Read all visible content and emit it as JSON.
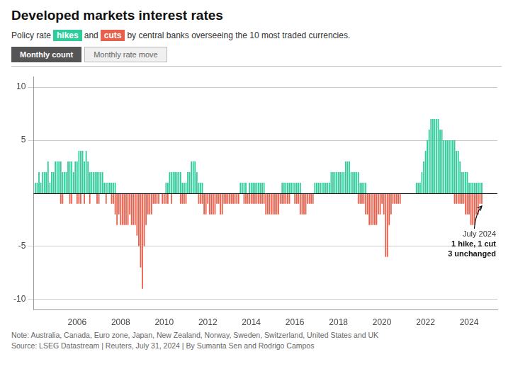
{
  "chart_data": {
    "type": "bar",
    "title": "Developed markets interest rates",
    "subtitle": [
      "Policy rate",
      "and",
      "by central banks overseeing the 10 most traded currencies."
    ],
    "buttons": [
      "Monthly count",
      "Monthly rate move"
    ],
    "x": [
      2004.0833,
      2004.1667,
      2004.25,
      2004.3333,
      2004.4167,
      2004.5,
      2004.5833,
      2004.6667,
      2004.75,
      2004.8333,
      2004.9167,
      2005.0,
      2005.0833,
      2005.1667,
      2005.25,
      2005.3333,
      2005.4167,
      2005.5,
      2005.5833,
      2005.6667,
      2005.75,
      2005.8333,
      2005.9167,
      2006.0,
      2006.0833,
      2006.1667,
      2006.25,
      2006.3333,
      2006.4167,
      2006.5,
      2006.5833,
      2006.6667,
      2006.75,
      2006.8333,
      2006.9167,
      2007.0,
      2007.0833,
      2007.1667,
      2007.25,
      2007.3333,
      2007.4167,
      2007.5,
      2007.5833,
      2007.6667,
      2007.75,
      2007.8333,
      2007.9167,
      2008.0,
      2008.0833,
      2008.1667,
      2008.25,
      2008.3333,
      2008.4167,
      2008.5,
      2008.5833,
      2008.6667,
      2008.75,
      2008.8333,
      2008.9167,
      2009.0,
      2009.0833,
      2009.1667,
      2009.25,
      2009.3333,
      2009.4167,
      2009.5,
      2009.5833,
      2009.6667,
      2009.75,
      2009.8333,
      2009.9167,
      2010.0,
      2010.0833,
      2010.1667,
      2010.25,
      2010.3333,
      2010.4167,
      2010.5,
      2010.5833,
      2010.6667,
      2010.75,
      2010.8333,
      2010.9167,
      2011.0,
      2011.0833,
      2011.1667,
      2011.25,
      2011.3333,
      2011.4167,
      2011.5,
      2011.5833,
      2011.6667,
      2011.75,
      2011.8333,
      2011.9167,
      2012.0,
      2012.0833,
      2012.1667,
      2012.25,
      2012.3333,
      2012.4167,
      2012.5,
      2012.5833,
      2012.6667,
      2012.75,
      2012.8333,
      2012.9167,
      2013.0,
      2013.0833,
      2013.1667,
      2013.25,
      2013.3333,
      2013.4167,
      2013.5,
      2013.5833,
      2013.6667,
      2013.75,
      2013.8333,
      2013.9167,
      2014.0,
      2014.0833,
      2014.1667,
      2014.25,
      2014.3333,
      2014.4167,
      2014.5,
      2014.5833,
      2014.6667,
      2014.75,
      2014.8333,
      2014.9167,
      2015.0,
      2015.0833,
      2015.1667,
      2015.25,
      2015.3333,
      2015.4167,
      2015.5,
      2015.5833,
      2015.6667,
      2015.75,
      2015.8333,
      2015.9167,
      2016.0,
      2016.0833,
      2016.1667,
      2016.25,
      2016.3333,
      2016.4167,
      2016.5,
      2016.5833,
      2016.6667,
      2016.75,
      2016.8333,
      2016.9167,
      2017.0,
      2017.0833,
      2017.1667,
      2017.25,
      2017.3333,
      2017.4167,
      2017.5,
      2017.5833,
      2017.6667,
      2017.75,
      2017.8333,
      2017.9167,
      2018.0,
      2018.0833,
      2018.1667,
      2018.25,
      2018.3333,
      2018.4167,
      2018.5,
      2018.5833,
      2018.6667,
      2018.75,
      2018.8333,
      2018.9167,
      2019.0,
      2019.0833,
      2019.1667,
      2019.25,
      2019.3333,
      2019.4167,
      2019.5,
      2019.5833,
      2019.6667,
      2019.75,
      2019.8333,
      2019.9167,
      2020.0,
      2020.0833,
      2020.1667,
      2020.25,
      2020.3333,
      2020.4167,
      2020.5,
      2020.5833,
      2020.6667,
      2020.75,
      2020.8333,
      2020.9167,
      2021.0,
      2021.0833,
      2021.1667,
      2021.25,
      2021.3333,
      2021.4167,
      2021.5,
      2021.5833,
      2021.6667,
      2021.75,
      2021.8333,
      2021.9167,
      2022.0,
      2022.0833,
      2022.1667,
      2022.25,
      2022.3333,
      2022.4167,
      2022.5,
      2022.5833,
      2022.6667,
      2022.75,
      2022.8333,
      2022.9167,
      2023.0,
      2023.0833,
      2023.1667,
      2023.25,
      2023.3333,
      2023.4167,
      2023.5,
      2023.5833,
      2023.6667,
      2023.75,
      2023.8333,
      2023.9167,
      2024.0,
      2024.0833,
      2024.1667,
      2024.25,
      2024.3333,
      2024.4167,
      2024.5,
      2024.5833
    ],
    "series": [
      {
        "name": "hikes",
        "color": "#2ecc9a",
        "values": [
          1,
          1,
          2,
          1,
          2,
          2,
          2,
          3,
          1,
          2,
          2,
          3,
          3,
          3,
          3,
          2,
          2,
          2,
          3,
          3,
          3,
          2,
          3,
          3,
          4,
          4,
          4,
          3,
          4,
          3,
          2,
          2,
          2,
          2,
          2,
          2,
          2,
          2,
          1,
          1,
          1,
          1,
          1,
          1,
          1,
          0,
          0,
          0,
          0,
          0,
          0,
          0,
          0,
          0,
          0,
          0,
          0,
          0,
          0,
          0,
          0,
          0,
          0,
          0,
          0,
          0,
          0,
          0,
          0,
          0,
          0,
          0,
          1,
          1,
          2,
          2,
          2,
          2,
          2,
          2,
          2,
          1,
          1,
          1,
          2,
          2,
          3,
          3,
          3,
          2,
          1,
          1,
          1,
          0,
          0,
          0,
          0,
          0,
          0,
          0,
          0,
          0,
          0,
          0,
          0,
          0,
          0,
          0,
          0,
          0,
          0,
          0,
          0,
          1,
          1,
          1,
          1,
          0,
          1,
          1,
          1,
          1,
          1,
          1,
          1,
          1,
          1,
          0,
          0,
          0,
          0,
          0,
          0,
          0,
          0,
          0,
          1,
          1,
          1,
          1,
          1,
          1,
          1,
          1,
          1,
          1,
          1,
          0,
          0,
          0,
          0,
          0,
          0,
          0,
          1,
          1,
          1,
          1,
          1,
          1,
          1,
          1,
          1,
          2,
          2,
          2,
          2,
          2,
          2,
          2,
          2,
          3,
          3,
          3,
          2,
          2,
          2,
          2,
          2,
          1,
          1,
          1,
          1,
          0,
          0,
          0,
          0,
          0,
          0,
          0,
          0,
          0,
          0,
          0,
          0,
          0,
          0,
          0,
          0,
          0,
          0,
          0,
          0,
          0,
          0,
          0,
          0,
          0,
          0,
          0,
          1,
          1,
          1,
          2,
          3,
          4,
          5,
          6,
          7,
          7,
          7,
          7,
          7,
          6,
          6,
          5,
          5,
          5,
          5,
          5,
          5,
          5,
          4,
          4,
          3,
          2,
          2,
          2,
          2,
          1,
          1,
          1,
          1,
          1,
          1,
          1,
          1
        ]
      },
      {
        "name": "cuts",
        "color": "#e8604c",
        "values": [
          0,
          0,
          0,
          0,
          0,
          0,
          0,
          0,
          0,
          0,
          0,
          0,
          0,
          0,
          -1,
          -1,
          0,
          0,
          0,
          -1,
          -1,
          0,
          0,
          -1,
          -1,
          -1,
          0,
          -1,
          0,
          0,
          -1,
          0,
          0,
          0,
          -1,
          -1,
          0,
          0,
          0,
          -1,
          0,
          0,
          -1,
          -1,
          -2,
          -3,
          -2,
          -3,
          -3,
          -3,
          -3,
          -3,
          -2,
          -3,
          -3,
          -3,
          -4,
          -5,
          -7,
          -9,
          -5,
          -3,
          -2,
          -2,
          -2,
          -1,
          -1,
          -1,
          -1,
          0,
          -1,
          -1,
          -1,
          -1,
          0,
          -1,
          0,
          0,
          0,
          0,
          -1,
          -1,
          -1,
          -1,
          0,
          0,
          0,
          0,
          0,
          0,
          -1,
          -1,
          -1,
          -2,
          -2,
          -1,
          -2,
          -2,
          -2,
          -2,
          -1,
          -1,
          -2,
          -2,
          -1,
          -1,
          -1,
          -1,
          -1,
          -1,
          -1,
          -1,
          -1,
          0,
          0,
          -1,
          -1,
          -1,
          -1,
          -1,
          -1,
          -1,
          -1,
          -1,
          -1,
          -1,
          -1,
          -2,
          -2,
          -2,
          -2,
          -2,
          -2,
          -2,
          -2,
          -1,
          -1,
          -1,
          -1,
          -1,
          -1,
          0,
          0,
          -1,
          -1,
          -1,
          -2,
          -2,
          -2,
          -2,
          -1,
          -1,
          -1,
          -1,
          0,
          0,
          0,
          0,
          0,
          0,
          0,
          0,
          0,
          0,
          0,
          0,
          0,
          0,
          0,
          0,
          0,
          0,
          0,
          0,
          0,
          0,
          0,
          0,
          -1,
          -1,
          -1,
          -1,
          -2,
          -2,
          -3,
          -3,
          -3,
          -3,
          -3,
          -2,
          -2,
          -1,
          -2,
          -6,
          -6,
          -3,
          -2,
          -1,
          -1,
          -1,
          -1,
          -1,
          0,
          0,
          0,
          0,
          0,
          0,
          0,
          0,
          0,
          0,
          0,
          0,
          0,
          0,
          0,
          0,
          0,
          0,
          0,
          0,
          0,
          0,
          0,
          0,
          0,
          0,
          0,
          0,
          0,
          -1,
          -1,
          -1,
          -1,
          -1,
          -1,
          -2,
          -2,
          -2,
          -3,
          -3,
          -3,
          -2,
          -2,
          -1,
          -1
        ]
      }
    ],
    "xlim": [
      2004.0,
      2025.3
    ],
    "xticks": [
      2006,
      2008,
      2010,
      2012,
      2014,
      2016,
      2018,
      2020,
      2022,
      2024
    ],
    "ylim": [
      -11,
      11
    ],
    "yticks": [
      -10,
      -5,
      5,
      10
    ],
    "grid": true,
    "annotations": [
      {
        "text": [
          "July 2024",
          "1 hike, 1 cut",
          "3 unchanged"
        ]
      }
    ],
    "note": "Note: Australia, Canada, Euro zone, Japan, New Zealand, Norway, Sweden, Switzerland, United States and UK",
    "source": "Source: LSEG Datastream | Reuters, July 31, 2024 | By Sumanta Sen and Rodrigo Campos"
  }
}
